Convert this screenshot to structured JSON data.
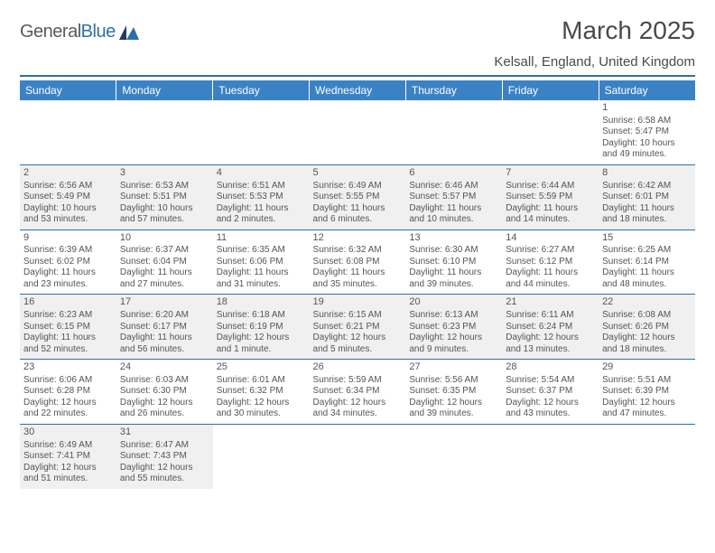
{
  "brand": {
    "word1": "General",
    "word2": "Blue"
  },
  "title": "March 2025",
  "location": "Kelsall, England, United Kingdom",
  "colors": {
    "accent": "#3b82c4",
    "border": "#2f6fa8",
    "alt_bg": "#f0f0f0",
    "text": "#555555"
  },
  "day_headers": [
    "Sunday",
    "Monday",
    "Tuesday",
    "Wednesday",
    "Thursday",
    "Friday",
    "Saturday"
  ],
  "weeks": [
    {
      "alt": false,
      "days": [
        null,
        null,
        null,
        null,
        null,
        null,
        {
          "n": "1",
          "sr": "Sunrise: 6:58 AM",
          "ss": "Sunset: 5:47 PM",
          "d1": "Daylight: 10 hours",
          "d2": "and 49 minutes."
        }
      ]
    },
    {
      "alt": true,
      "days": [
        {
          "n": "2",
          "sr": "Sunrise: 6:56 AM",
          "ss": "Sunset: 5:49 PM",
          "d1": "Daylight: 10 hours",
          "d2": "and 53 minutes."
        },
        {
          "n": "3",
          "sr": "Sunrise: 6:53 AM",
          "ss": "Sunset: 5:51 PM",
          "d1": "Daylight: 10 hours",
          "d2": "and 57 minutes."
        },
        {
          "n": "4",
          "sr": "Sunrise: 6:51 AM",
          "ss": "Sunset: 5:53 PM",
          "d1": "Daylight: 11 hours",
          "d2": "and 2 minutes."
        },
        {
          "n": "5",
          "sr": "Sunrise: 6:49 AM",
          "ss": "Sunset: 5:55 PM",
          "d1": "Daylight: 11 hours",
          "d2": "and 6 minutes."
        },
        {
          "n": "6",
          "sr": "Sunrise: 6:46 AM",
          "ss": "Sunset: 5:57 PM",
          "d1": "Daylight: 11 hours",
          "d2": "and 10 minutes."
        },
        {
          "n": "7",
          "sr": "Sunrise: 6:44 AM",
          "ss": "Sunset: 5:59 PM",
          "d1": "Daylight: 11 hours",
          "d2": "and 14 minutes."
        },
        {
          "n": "8",
          "sr": "Sunrise: 6:42 AM",
          "ss": "Sunset: 6:01 PM",
          "d1": "Daylight: 11 hours",
          "d2": "and 18 minutes."
        }
      ]
    },
    {
      "alt": false,
      "days": [
        {
          "n": "9",
          "sr": "Sunrise: 6:39 AM",
          "ss": "Sunset: 6:02 PM",
          "d1": "Daylight: 11 hours",
          "d2": "and 23 minutes."
        },
        {
          "n": "10",
          "sr": "Sunrise: 6:37 AM",
          "ss": "Sunset: 6:04 PM",
          "d1": "Daylight: 11 hours",
          "d2": "and 27 minutes."
        },
        {
          "n": "11",
          "sr": "Sunrise: 6:35 AM",
          "ss": "Sunset: 6:06 PM",
          "d1": "Daylight: 11 hours",
          "d2": "and 31 minutes."
        },
        {
          "n": "12",
          "sr": "Sunrise: 6:32 AM",
          "ss": "Sunset: 6:08 PM",
          "d1": "Daylight: 11 hours",
          "d2": "and 35 minutes."
        },
        {
          "n": "13",
          "sr": "Sunrise: 6:30 AM",
          "ss": "Sunset: 6:10 PM",
          "d1": "Daylight: 11 hours",
          "d2": "and 39 minutes."
        },
        {
          "n": "14",
          "sr": "Sunrise: 6:27 AM",
          "ss": "Sunset: 6:12 PM",
          "d1": "Daylight: 11 hours",
          "d2": "and 44 minutes."
        },
        {
          "n": "15",
          "sr": "Sunrise: 6:25 AM",
          "ss": "Sunset: 6:14 PM",
          "d1": "Daylight: 11 hours",
          "d2": "and 48 minutes."
        }
      ]
    },
    {
      "alt": true,
      "days": [
        {
          "n": "16",
          "sr": "Sunrise: 6:23 AM",
          "ss": "Sunset: 6:15 PM",
          "d1": "Daylight: 11 hours",
          "d2": "and 52 minutes."
        },
        {
          "n": "17",
          "sr": "Sunrise: 6:20 AM",
          "ss": "Sunset: 6:17 PM",
          "d1": "Daylight: 11 hours",
          "d2": "and 56 minutes."
        },
        {
          "n": "18",
          "sr": "Sunrise: 6:18 AM",
          "ss": "Sunset: 6:19 PM",
          "d1": "Daylight: 12 hours",
          "d2": "and 1 minute."
        },
        {
          "n": "19",
          "sr": "Sunrise: 6:15 AM",
          "ss": "Sunset: 6:21 PM",
          "d1": "Daylight: 12 hours",
          "d2": "and 5 minutes."
        },
        {
          "n": "20",
          "sr": "Sunrise: 6:13 AM",
          "ss": "Sunset: 6:23 PM",
          "d1": "Daylight: 12 hours",
          "d2": "and 9 minutes."
        },
        {
          "n": "21",
          "sr": "Sunrise: 6:11 AM",
          "ss": "Sunset: 6:24 PM",
          "d1": "Daylight: 12 hours",
          "d2": "and 13 minutes."
        },
        {
          "n": "22",
          "sr": "Sunrise: 6:08 AM",
          "ss": "Sunset: 6:26 PM",
          "d1": "Daylight: 12 hours",
          "d2": "and 18 minutes."
        }
      ]
    },
    {
      "alt": false,
      "days": [
        {
          "n": "23",
          "sr": "Sunrise: 6:06 AM",
          "ss": "Sunset: 6:28 PM",
          "d1": "Daylight: 12 hours",
          "d2": "and 22 minutes."
        },
        {
          "n": "24",
          "sr": "Sunrise: 6:03 AM",
          "ss": "Sunset: 6:30 PM",
          "d1": "Daylight: 12 hours",
          "d2": "and 26 minutes."
        },
        {
          "n": "25",
          "sr": "Sunrise: 6:01 AM",
          "ss": "Sunset: 6:32 PM",
          "d1": "Daylight: 12 hours",
          "d2": "and 30 minutes."
        },
        {
          "n": "26",
          "sr": "Sunrise: 5:59 AM",
          "ss": "Sunset: 6:34 PM",
          "d1": "Daylight: 12 hours",
          "d2": "and 34 minutes."
        },
        {
          "n": "27",
          "sr": "Sunrise: 5:56 AM",
          "ss": "Sunset: 6:35 PM",
          "d1": "Daylight: 12 hours",
          "d2": "and 39 minutes."
        },
        {
          "n": "28",
          "sr": "Sunrise: 5:54 AM",
          "ss": "Sunset: 6:37 PM",
          "d1": "Daylight: 12 hours",
          "d2": "and 43 minutes."
        },
        {
          "n": "29",
          "sr": "Sunrise: 5:51 AM",
          "ss": "Sunset: 6:39 PM",
          "d1": "Daylight: 12 hours",
          "d2": "and 47 minutes."
        }
      ]
    },
    {
      "alt": true,
      "days": [
        {
          "n": "30",
          "sr": "Sunrise: 6:49 AM",
          "ss": "Sunset: 7:41 PM",
          "d1": "Daylight: 12 hours",
          "d2": "and 51 minutes."
        },
        {
          "n": "31",
          "sr": "Sunrise: 6:47 AM",
          "ss": "Sunset: 7:43 PM",
          "d1": "Daylight: 12 hours",
          "d2": "and 55 minutes."
        },
        null,
        null,
        null,
        null,
        null
      ]
    }
  ]
}
